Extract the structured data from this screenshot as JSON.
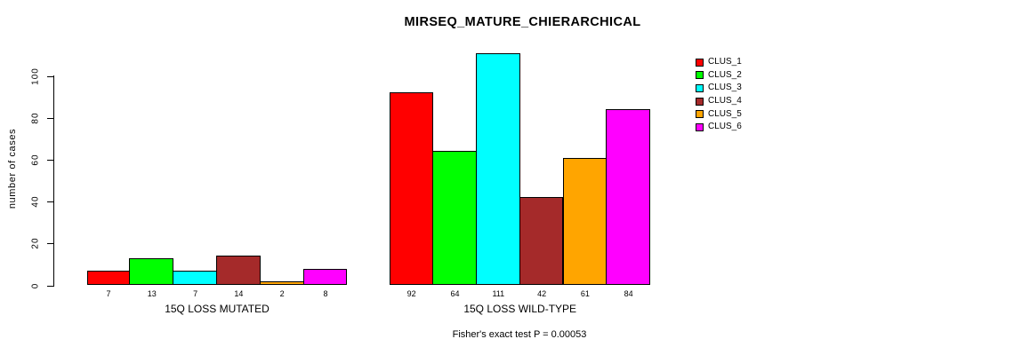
{
  "chart_data": {
    "type": "bar",
    "title": "MIRSEQ_MATURE_CHIERARCHICAL",
    "ylabel": "number of cases",
    "ylim": [
      0,
      111
    ],
    "yticks": [
      0,
      20,
      40,
      60,
      80,
      100
    ],
    "grid": false,
    "legend_position": "right",
    "categories": [
      "15Q LOSS MUTATED",
      "15Q LOSS WILD-TYPE"
    ],
    "groups": [
      {
        "label": "15Q LOSS MUTATED",
        "values": [
          7,
          13,
          7,
          14,
          2,
          8
        ]
      },
      {
        "label": "15Q LOSS WILD-TYPE",
        "values": [
          92,
          64,
          111,
          42,
          61,
          84
        ]
      }
    ],
    "series": [
      {
        "name": "CLUS_1",
        "color": "#FF0000",
        "values": [
          7,
          92
        ]
      },
      {
        "name": "CLUS_2",
        "color": "#00FF00",
        "values": [
          13,
          64
        ]
      },
      {
        "name": "CLUS_3",
        "color": "#00FFFF",
        "values": [
          7,
          111
        ]
      },
      {
        "name": "CLUS_4",
        "color": "#A52A2A",
        "values": [
          14,
          42
        ]
      },
      {
        "name": "CLUS_5",
        "color": "#FFA500",
        "values": [
          2,
          61
        ]
      },
      {
        "name": "CLUS_6",
        "color": "#FF00FF",
        "values": [
          8,
          84
        ]
      }
    ],
    "footnote": "Fisher's exact test P = 0.00053"
  }
}
